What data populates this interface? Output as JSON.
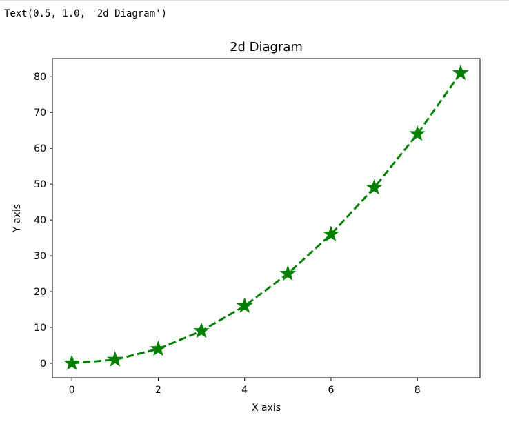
{
  "output": {
    "text": "Text(0.5, 1.0, '2d Diagram')"
  },
  "chart_data": {
    "type": "line",
    "title": "2d Diagram",
    "xlabel": "X axis",
    "ylabel": "Y axis",
    "x": [
      0,
      1,
      2,
      3,
      4,
      5,
      6,
      7,
      8,
      9
    ],
    "series": [
      {
        "values": [
          0,
          1,
          4,
          9,
          16,
          25,
          36,
          49,
          64,
          81
        ],
        "color": "#008000",
        "linestyle": "dashed",
        "marker": "star"
      }
    ],
    "xlim": [
      -0.45,
      9.45
    ],
    "ylim": [
      -4.05,
      85.05
    ],
    "xticks": [
      0,
      2,
      4,
      6,
      8
    ],
    "yticks": [
      0,
      10,
      20,
      30,
      40,
      50,
      60,
      70,
      80
    ],
    "grid": false
  }
}
